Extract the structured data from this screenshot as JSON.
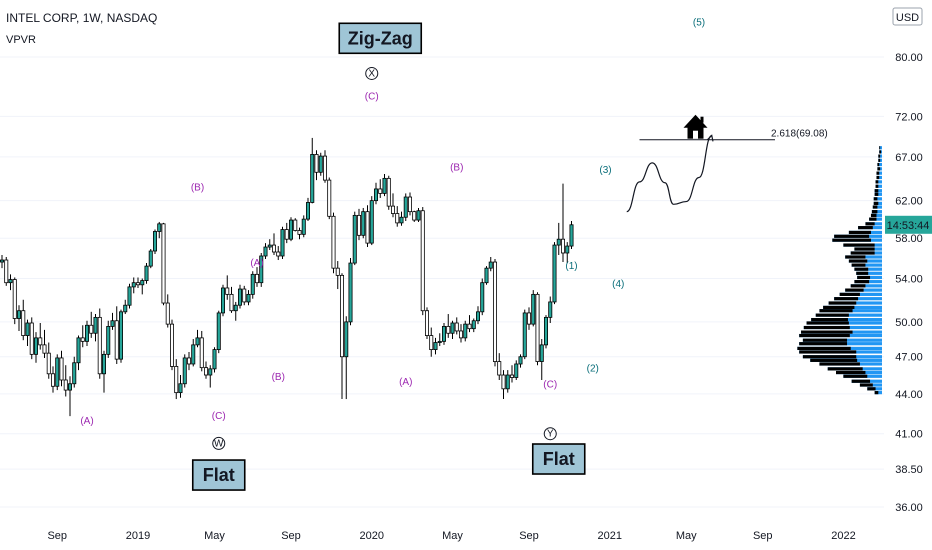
{
  "chart_data": {
    "type": "candlestick",
    "symbol": "INTEL CORP, 1W, NASDAQ",
    "indicator": "VPVR",
    "currency": "USD",
    "y_axis": {
      "scale": "log",
      "ylim": [
        35.2,
        87.5
      ],
      "ticks": [
        "80.00",
        "72.00",
        "67.00",
        "62.00",
        "58.00",
        "54.00",
        "50.00",
        "47.00",
        "44.00",
        "41.00",
        "38.50",
        "36.00"
      ]
    },
    "x_axis": {
      "ticks": [
        "Sep",
        "2019",
        "May",
        "Sep",
        "2020",
        "May",
        "Sep",
        "2021",
        "May",
        "Sep",
        "2022"
      ]
    },
    "last_time": "14:53:44",
    "colors": {
      "up": "#26a69a",
      "down": "#ffffff",
      "outline": "#000000",
      "profile": "#2196f3",
      "profile_dark": "#000000",
      "price_tag": "#26a69a",
      "wave_magenta": "#9c27b0",
      "wave_teal": "#0a6e7a",
      "box_fill": "#9fc5d6"
    },
    "price_series": [
      [
        55.6,
        56.3,
        55.0,
        55.8
      ],
      [
        55.8,
        56.1,
        53.3,
        53.6
      ],
      [
        53.6,
        54.4,
        52.9,
        53.9
      ],
      [
        53.9,
        54.1,
        49.8,
        50.3
      ],
      [
        50.3,
        51.5,
        49.2,
        51.0
      ],
      [
        51.0,
        52.0,
        48.4,
        48.8
      ],
      [
        48.8,
        50.2,
        47.9,
        49.9
      ],
      [
        49.9,
        50.4,
        46.8,
        47.2
      ],
      [
        47.2,
        49.1,
        46.5,
        48.6
      ],
      [
        48.6,
        49.9,
        47.6,
        48.0
      ],
      [
        48.0,
        49.3,
        46.9,
        47.3
      ],
      [
        47.3,
        48.2,
        45.2,
        45.6
      ],
      [
        45.6,
        46.2,
        44.1,
        44.6
      ],
      [
        44.6,
        47.2,
        44.3,
        46.9
      ],
      [
        46.9,
        47.5,
        44.6,
        45.1
      ],
      [
        45.1,
        46.3,
        43.8,
        44.3
      ],
      [
        44.3,
        45.4,
        42.3,
        44.8
      ],
      [
        44.8,
        47.0,
        44.5,
        46.5
      ],
      [
        46.5,
        48.8,
        45.9,
        48.6
      ],
      [
        48.6,
        49.7,
        47.8,
        48.3
      ],
      [
        48.3,
        50.1,
        47.9,
        49.7
      ],
      [
        49.7,
        50.9,
        48.6,
        49.0
      ],
      [
        49.0,
        50.7,
        48.3,
        50.4
      ],
      [
        50.4,
        51.2,
        45.2,
        45.6
      ],
      [
        45.6,
        47.5,
        44.1,
        47.2
      ],
      [
        47.2,
        50.1,
        46.9,
        49.6
      ],
      [
        49.6,
        50.8,
        49.3,
        50.1
      ],
      [
        50.1,
        51.4,
        46.4,
        46.8
      ],
      [
        46.8,
        51.1,
        46.5,
        50.9
      ],
      [
        50.9,
        52.0,
        50.7,
        51.5
      ],
      [
        51.5,
        53.5,
        51.2,
        53.2
      ],
      [
        53.2,
        54.1,
        52.6,
        53.6
      ],
      [
        53.6,
        54.1,
        53.1,
        53.4
      ],
      [
        53.4,
        54.0,
        52.5,
        53.8
      ],
      [
        53.8,
        55.5,
        53.5,
        55.2
      ],
      [
        55.2,
        56.9,
        55.0,
        56.7
      ],
      [
        56.7,
        58.9,
        56.4,
        58.7
      ],
      [
        58.7,
        59.7,
        58.0,
        59.5
      ],
      [
        59.5,
        59.6,
        51.5,
        51.7
      ],
      [
        51.7,
        52.5,
        49.5,
        49.8
      ],
      [
        49.8,
        50.2,
        45.9,
        46.2
      ],
      [
        46.2,
        46.8,
        43.6,
        44.1
      ],
      [
        44.1,
        45.5,
        43.7,
        44.8
      ],
      [
        44.8,
        47.2,
        44.5,
        46.9
      ],
      [
        46.9,
        47.4,
        45.9,
        46.4
      ],
      [
        46.4,
        48.5,
        46.2,
        48.0
      ],
      [
        48.0,
        49.3,
        47.8,
        48.6
      ],
      [
        48.6,
        49.2,
        45.8,
        46.1
      ],
      [
        46.1,
        46.6,
        45.2,
        45.5
      ],
      [
        45.5,
        46.3,
        44.5,
        46.0
      ],
      [
        46.0,
        47.8,
        45.7,
        47.6
      ],
      [
        47.6,
        51.0,
        47.3,
        50.8
      ],
      [
        50.8,
        53.4,
        50.5,
        53.1
      ],
      [
        53.1,
        54.3,
        52.0,
        52.5
      ],
      [
        52.5,
        53.2,
        50.8,
        51.0
      ],
      [
        51.0,
        51.8,
        50.1,
        51.5
      ],
      [
        51.5,
        53.4,
        51.2,
        53.0
      ],
      [
        53.0,
        53.3,
        51.5,
        51.8
      ],
      [
        51.8,
        52.9,
        51.5,
        52.5
      ],
      [
        52.5,
        54.7,
        52.1,
        54.4
      ],
      [
        54.4,
        55.1,
        53.2,
        53.6
      ],
      [
        53.6,
        56.5,
        53.2,
        56.2
      ],
      [
        56.2,
        57.5,
        55.9,
        57.1
      ],
      [
        57.1,
        57.9,
        56.8,
        57.3
      ],
      [
        57.3,
        58.5,
        56.3,
        56.6
      ],
      [
        56.6,
        57.2,
        55.8,
        56.2
      ],
      [
        56.2,
        59.2,
        55.9,
        58.9
      ],
      [
        58.9,
        59.6,
        57.5,
        57.9
      ],
      [
        57.9,
        60.2,
        57.7,
        59.9
      ],
      [
        59.9,
        60.1,
        58.7,
        58.8
      ],
      [
        58.8,
        59.1,
        57.9,
        58.4
      ],
      [
        58.4,
        60.4,
        58.1,
        60.0
      ],
      [
        60.0,
        62.3,
        59.8,
        61.8
      ],
      [
        61.8,
        69.3,
        61.7,
        67.3
      ],
      [
        67.3,
        67.8,
        64.3,
        65.2
      ],
      [
        65.2,
        67.5,
        64.8,
        67.1
      ],
      [
        67.1,
        67.8,
        64.0,
        64.3
      ],
      [
        64.3,
        64.6,
        60.0,
        60.3
      ],
      [
        60.3,
        60.7,
        54.5,
        55.0
      ],
      [
        55.0,
        55.7,
        53.0,
        54.3
      ],
      [
        54.3,
        54.5,
        43.6,
        47.0
      ],
      [
        47.0,
        50.5,
        43.6,
        50.0
      ],
      [
        50.0,
        56.0,
        49.7,
        55.5
      ],
      [
        55.5,
        60.8,
        55.3,
        60.4
      ],
      [
        60.4,
        61.1,
        57.8,
        58.3
      ],
      [
        58.3,
        61.2,
        58.0,
        60.8
      ],
      [
        60.8,
        61.5,
        57.1,
        57.5
      ],
      [
        57.5,
        62.5,
        57.3,
        62.0
      ],
      [
        62.0,
        64.0,
        61.6,
        63.3
      ],
      [
        63.3,
        64.4,
        62.3,
        62.8
      ],
      [
        62.8,
        65.0,
        62.5,
        64.5
      ],
      [
        64.5,
        64.8,
        61.0,
        61.4
      ],
      [
        61.4,
        62.8,
        60.2,
        60.6
      ],
      [
        60.6,
        61.4,
        59.2,
        59.6
      ],
      [
        59.6,
        60.8,
        59.3,
        60.2
      ],
      [
        60.2,
        62.8,
        59.8,
        62.4
      ],
      [
        62.4,
        62.9,
        60.4,
        60.8
      ],
      [
        60.8,
        60.9,
        59.7,
        59.9
      ],
      [
        59.9,
        61.2,
        59.7,
        60.9
      ],
      [
        60.9,
        61.3,
        50.6,
        51.0
      ],
      [
        51.0,
        51.3,
        48.5,
        48.8
      ],
      [
        48.8,
        49.5,
        47.0,
        47.6
      ],
      [
        47.6,
        48.6,
        47.2,
        48.2
      ],
      [
        48.2,
        49.0,
        47.9,
        48.3
      ],
      [
        48.3,
        49.9,
        48.0,
        49.6
      ],
      [
        49.6,
        50.7,
        48.6,
        49.0
      ],
      [
        49.0,
        50.1,
        48.5,
        49.9
      ],
      [
        49.9,
        50.4,
        48.9,
        49.2
      ],
      [
        49.2,
        49.8,
        48.2,
        48.6
      ],
      [
        48.6,
        50.1,
        48.3,
        49.8
      ],
      [
        49.8,
        50.6,
        49.1,
        49.4
      ],
      [
        49.4,
        50.3,
        49.1,
        50.1
      ],
      [
        50.1,
        51.4,
        49.8,
        50.9
      ],
      [
        50.9,
        54.0,
        50.6,
        53.6
      ],
      [
        53.6,
        55.2,
        53.4,
        55.0
      ],
      [
        55.0,
        56.1,
        54.7,
        55.6
      ],
      [
        55.6,
        55.9,
        46.2,
        46.6
      ],
      [
        46.6,
        47.3,
        45.1,
        45.5
      ],
      [
        45.5,
        45.9,
        43.6,
        44.4
      ],
      [
        44.4,
        45.9,
        44.1,
        45.5
      ],
      [
        45.5,
        46.3,
        44.9,
        45.3
      ],
      [
        45.3,
        46.7,
        45.1,
        46.4
      ],
      [
        46.4,
        47.2,
        46.1,
        47.0
      ],
      [
        47.0,
        51.1,
        46.8,
        50.8
      ],
      [
        50.8,
        51.3,
        49.3,
        49.8
      ],
      [
        49.8,
        52.9,
        49.6,
        52.5
      ],
      [
        52.5,
        52.7,
        46.3,
        46.6
      ],
      [
        46.6,
        48.5,
        45.1,
        48.0
      ],
      [
        48.0,
        50.6,
        47.7,
        50.4
      ],
      [
        50.4,
        52.3,
        49.9,
        51.8
      ],
      [
        51.8,
        57.6,
        51.6,
        57.3
      ],
      [
        57.3,
        59.6,
        56.3,
        57.9
      ],
      [
        57.9,
        63.9,
        55.6,
        56.5
      ],
      [
        56.5,
        57.6,
        55.5,
        57.2
      ],
      [
        57.2,
        59.8,
        56.9,
        59.4
      ]
    ],
    "volume_profile": [
      {
        "p": 44.1,
        "t": 8,
        "d": 4
      },
      {
        "p": 44.4,
        "t": 16,
        "d": 9
      },
      {
        "p": 44.7,
        "t": 24,
        "d": 14
      },
      {
        "p": 45.0,
        "t": 33,
        "d": 20
      },
      {
        "p": 45.4,
        "t": 42,
        "d": 26
      },
      {
        "p": 45.7,
        "t": 50,
        "d": 32
      },
      {
        "p": 46.0,
        "t": 59,
        "d": 38
      },
      {
        "p": 46.4,
        "t": 68,
        "d": 44
      },
      {
        "p": 46.7,
        "t": 78,
        "d": 51
      },
      {
        "p": 47.0,
        "t": 86,
        "d": 58
      },
      {
        "p": 47.4,
        "t": 90,
        "d": 62
      },
      {
        "p": 47.7,
        "t": 92,
        "d": 58
      },
      {
        "p": 48.1,
        "t": 90,
        "d": 52
      },
      {
        "p": 48.4,
        "t": 86,
        "d": 48
      },
      {
        "p": 48.8,
        "t": 90,
        "d": 55
      },
      {
        "p": 49.1,
        "t": 88,
        "d": 56
      },
      {
        "p": 49.5,
        "t": 85,
        "d": 50
      },
      {
        "p": 49.9,
        "t": 82,
        "d": 46
      },
      {
        "p": 50.2,
        "t": 77,
        "d": 40
      },
      {
        "p": 50.6,
        "t": 72,
        "d": 36
      },
      {
        "p": 51.0,
        "t": 68,
        "d": 36
      },
      {
        "p": 51.3,
        "t": 64,
        "d": 34
      },
      {
        "p": 51.7,
        "t": 58,
        "d": 30
      },
      {
        "p": 52.1,
        "t": 52,
        "d": 26
      },
      {
        "p": 52.5,
        "t": 46,
        "d": 22
      },
      {
        "p": 52.9,
        "t": 40,
        "d": 20
      },
      {
        "p": 53.3,
        "t": 34,
        "d": 16
      },
      {
        "p": 53.7,
        "t": 30,
        "d": 16
      },
      {
        "p": 54.1,
        "t": 27,
        "d": 14
      },
      {
        "p": 54.5,
        "t": 28,
        "d": 13
      },
      {
        "p": 54.9,
        "t": 30,
        "d": 15
      },
      {
        "p": 55.3,
        "t": 33,
        "d": 15
      },
      {
        "p": 55.7,
        "t": 36,
        "d": 20
      },
      {
        "p": 56.1,
        "t": 40,
        "d": 22
      },
      {
        "p": 56.5,
        "t": 34,
        "d": 26
      },
      {
        "p": 56.9,
        "t": 30,
        "d": 22
      },
      {
        "p": 57.3,
        "t": 42,
        "d": 34
      },
      {
        "p": 57.8,
        "t": 54,
        "d": 42
      },
      {
        "p": 58.2,
        "t": 52,
        "d": 38
      },
      {
        "p": 58.6,
        "t": 36,
        "d": 24
      },
      {
        "p": 59.1,
        "t": 26,
        "d": 16
      },
      {
        "p": 59.5,
        "t": 18,
        "d": 10
      },
      {
        "p": 60.0,
        "t": 14,
        "d": 8
      },
      {
        "p": 60.4,
        "t": 12,
        "d": 6
      },
      {
        "p": 60.8,
        "t": 11,
        "d": 6
      },
      {
        "p": 61.3,
        "t": 10,
        "d": 5
      },
      {
        "p": 61.7,
        "t": 9,
        "d": 5
      },
      {
        "p": 62.2,
        "t": 9,
        "d": 4
      },
      {
        "p": 62.7,
        "t": 8,
        "d": 4
      },
      {
        "p": 63.1,
        "t": 8,
        "d": 4
      },
      {
        "p": 63.6,
        "t": 7,
        "d": 3
      },
      {
        "p": 64.1,
        "t": 7,
        "d": 3
      },
      {
        "p": 64.6,
        "t": 6,
        "d": 3
      },
      {
        "p": 65.1,
        "t": 6,
        "d": 3
      },
      {
        "p": 65.6,
        "t": 5,
        "d": 3
      },
      {
        "p": 66.1,
        "t": 5,
        "d": 2
      },
      {
        "p": 66.6,
        "t": 4,
        "d": 2
      },
      {
        "p": 67.1,
        "t": 4,
        "d": 2
      },
      {
        "p": 67.6,
        "t": 3,
        "d": 2
      },
      {
        "p": 68.1,
        "t": 3,
        "d": 1
      }
    ],
    "annotations": {
      "waves": [
        {
          "text": "(A)",
          "date_index": 20,
          "price": 41.7,
          "color": "magenta"
        },
        {
          "text": "(B)",
          "date_index": 46,
          "price": 63.1,
          "color": "magenta"
        },
        {
          "text": "(C)",
          "date_index": 51,
          "price": 42.1,
          "color": "magenta"
        },
        {
          "text": "(A)",
          "date_index": 60,
          "price": 55.2,
          "color": "magenta"
        },
        {
          "text": "(B)",
          "date_index": 65,
          "price": 45.1,
          "color": "magenta"
        },
        {
          "text": "(C)",
          "date_index": 87,
          "price": 74.2,
          "color": "magenta"
        },
        {
          "text": "(A)",
          "date_index": 95,
          "price": 44.7,
          "color": "magenta"
        },
        {
          "text": "(B)",
          "date_index": 107,
          "price": 65.4,
          "color": "magenta"
        },
        {
          "text": "(C)",
          "date_index": 129,
          "price": 44.5,
          "color": "magenta"
        },
        {
          "text": "(1)",
          "date_index": 134,
          "price": 54.9,
          "color": "teal"
        },
        {
          "text": "(2)",
          "date_index": 139,
          "price": 45.8,
          "color": "teal"
        },
        {
          "text": "(3)",
          "date_index": 142,
          "price": 65.1,
          "color": "teal"
        },
        {
          "text": "(4)",
          "date_index": 145,
          "price": 53.2,
          "color": "teal"
        },
        {
          "text": "(5)",
          "date_index": 164,
          "price": 84.6,
          "color": "teal"
        }
      ],
      "circled": [
        {
          "text": "W",
          "date_index": 51,
          "price": 40.3
        },
        {
          "text": "X",
          "date_index": 87,
          "price": 77.7
        },
        {
          "text": "Y",
          "date_index": 129,
          "price": 41.0
        }
      ],
      "boxes": [
        {
          "text": "Flat",
          "date_index": 51,
          "price": 38.1
        },
        {
          "text": "Zig-Zag",
          "date_index": 89,
          "price": 82.7
        },
        {
          "text": "Flat",
          "date_index": 131,
          "price": 39.2
        }
      ],
      "fib": {
        "label": "2.618(69.08)",
        "price": 69.08,
        "date_from": 150,
        "date_to": 180
      },
      "projection": [
        [
          147,
          60.8
        ],
        [
          150,
          64.1
        ],
        [
          153,
          66.3
        ],
        [
          156,
          64.0
        ],
        [
          158,
          61.6
        ],
        [
          161,
          61.9
        ],
        [
          164,
          64.6
        ],
        [
          167,
          69.6
        ]
      ],
      "target_icon": "house-icon"
    }
  }
}
